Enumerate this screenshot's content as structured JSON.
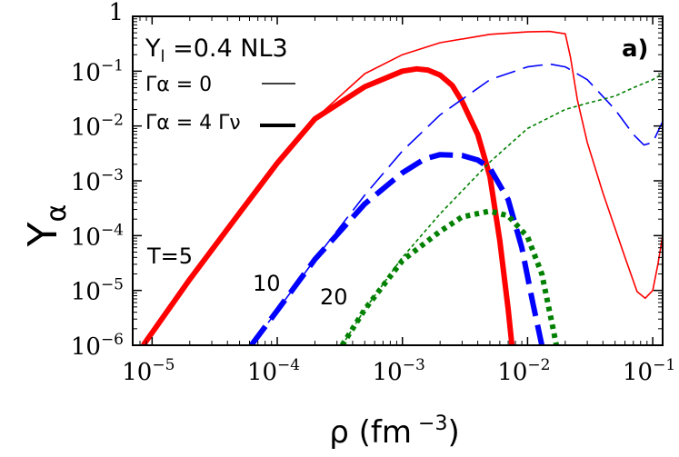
{
  "chart_data": {
    "type": "line",
    "panel_label": "a)",
    "xlabel_main": "ρ (fm",
    "xlabel_exp": " −3",
    "xlabel_close": ")",
    "ylabel_main": "Y",
    "ylabel_sub": "α",
    "xscale": "log",
    "yscale": "log",
    "xlim": [
      7e-06,
      0.12
    ],
    "ylim": [
      1e-06,
      1
    ],
    "grid": false,
    "x_ticks": [
      {
        "value": 1e-05,
        "base": "10",
        "exp": "−5"
      },
      {
        "value": 0.0001,
        "base": "10",
        "exp": "−4"
      },
      {
        "value": 0.001,
        "base": "10",
        "exp": "−3"
      },
      {
        "value": 0.01,
        "base": "10",
        "exp": "−2"
      },
      {
        "value": 0.1,
        "base": "10",
        "exp": "−1"
      }
    ],
    "y_ticks": [
      {
        "value": 1e-06,
        "base": "10",
        "exp": "−6"
      },
      {
        "value": 1e-05,
        "base": "10",
        "exp": "−5"
      },
      {
        "value": 0.0001,
        "base": "10",
        "exp": "−4"
      },
      {
        "value": 0.001,
        "base": "10",
        "exp": "−3"
      },
      {
        "value": 0.01,
        "base": "10",
        "exp": "−2"
      },
      {
        "value": 0.1,
        "base": "10",
        "exp": "−1"
      },
      {
        "value": 1,
        "base": "1",
        "exp": ""
      }
    ],
    "legend": {
      "line1_main": "Y",
      "line1_sub": "l",
      "line1_rest": " =0.4  NL3",
      "line2": "Γα = 0",
      "line3": "Γα = 4 Γν"
    },
    "curve_labels": {
      "t5": "T=5",
      "t10": "10",
      "t20": "20"
    },
    "colors": {
      "T5": "#ff0000",
      "T10": "#0000ff",
      "T20": "#008000"
    },
    "series": [
      {
        "group": "T5",
        "style": "solid",
        "width": "thin",
        "points": [
          [
            8.5e-06,
            1e-06
          ],
          [
            2e-05,
            1.6e-05
          ],
          [
            5e-05,
            0.00026
          ],
          [
            0.0001,
            0.0021
          ],
          [
            0.0002,
            0.0135
          ],
          [
            0.0005,
            0.09
          ],
          [
            0.001,
            0.2
          ],
          [
            0.002,
            0.33
          ],
          [
            0.005,
            0.47
          ],
          [
            0.01,
            0.52
          ],
          [
            0.015,
            0.53
          ],
          [
            0.02,
            0.48
          ],
          [
            0.022,
            0.18
          ],
          [
            0.025,
            0.03
          ],
          [
            0.03,
            0.005
          ],
          [
            0.04,
            0.0006
          ],
          [
            0.06,
            4e-05
          ],
          [
            0.075,
            9.5e-06
          ],
          [
            0.087,
            7.2e-06
          ],
          [
            0.1,
            1e-05
          ],
          [
            0.11,
            3e-05
          ],
          [
            0.12,
            0.0001
          ]
        ]
      },
      {
        "group": "T5",
        "style": "solid",
        "width": "thick",
        "points": [
          [
            8.5e-06,
            1e-06
          ],
          [
            2e-05,
            1.6e-05
          ],
          [
            5e-05,
            0.00026
          ],
          [
            0.0001,
            0.0021
          ],
          [
            0.0002,
            0.0135
          ],
          [
            0.0005,
            0.052
          ],
          [
            0.001,
            0.1
          ],
          [
            0.0013,
            0.11
          ],
          [
            0.0016,
            0.105
          ],
          [
            0.002,
            0.085
          ],
          [
            0.0025,
            0.055
          ],
          [
            0.003,
            0.028
          ],
          [
            0.004,
            0.007
          ],
          [
            0.005,
            0.0012
          ],
          [
            0.006,
            8e-05
          ],
          [
            0.007,
            4.5e-06
          ],
          [
            0.0075,
            1e-06
          ]
        ]
      },
      {
        "group": "T10",
        "style": "dashed",
        "width": "thin",
        "points": [
          [
            6.2e-05,
            1e-06
          ],
          [
            0.0001,
            4.3e-06
          ],
          [
            0.0002,
            3.7e-05
          ],
          [
            0.0005,
            0.00055
          ],
          [
            0.001,
            0.0035
          ],
          [
            0.002,
            0.016
          ],
          [
            0.005,
            0.07
          ],
          [
            0.01,
            0.12
          ],
          [
            0.015,
            0.135
          ],
          [
            0.02,
            0.12
          ],
          [
            0.03,
            0.07
          ],
          [
            0.05,
            0.02
          ],
          [
            0.07,
            0.007
          ],
          [
            0.085,
            0.0045
          ],
          [
            0.1,
            0.005
          ],
          [
            0.12,
            0.012
          ]
        ]
      },
      {
        "group": "T10",
        "style": "dashed",
        "width": "thick",
        "points": [
          [
            6.2e-05,
            1e-06
          ],
          [
            0.0001,
            4.3e-06
          ],
          [
            0.0002,
            3.7e-05
          ],
          [
            0.0005,
            0.00038
          ],
          [
            0.001,
            0.0014
          ],
          [
            0.0015,
            0.0025
          ],
          [
            0.002,
            0.003
          ],
          [
            0.003,
            0.0029
          ],
          [
            0.004,
            0.0024
          ],
          [
            0.005,
            0.0017
          ],
          [
            0.007,
            0.00045
          ],
          [
            0.009,
            6e-05
          ],
          [
            0.011,
            6e-06
          ],
          [
            0.013,
            1e-06
          ]
        ]
      },
      {
        "group": "T20",
        "style": "dotted",
        "width": "thin",
        "points": [
          [
            0.00033,
            1e-06
          ],
          [
            0.0005,
            4.5e-06
          ],
          [
            0.001,
            4e-05
          ],
          [
            0.002,
            0.00025
          ],
          [
            0.005,
            0.0022
          ],
          [
            0.01,
            0.009
          ],
          [
            0.02,
            0.02
          ],
          [
            0.03,
            0.026
          ],
          [
            0.05,
            0.035
          ],
          [
            0.07,
            0.05
          ],
          [
            0.1,
            0.07
          ],
          [
            0.12,
            0.09
          ]
        ]
      },
      {
        "group": "T20",
        "style": "dotted",
        "width": "thick",
        "points": [
          [
            0.00033,
            1e-06
          ],
          [
            0.0005,
            4.5e-06
          ],
          [
            0.001,
            3.5e-05
          ],
          [
            0.002,
            0.00012
          ],
          [
            0.003,
            0.00022
          ],
          [
            0.005,
            0.00028
          ],
          [
            0.007,
            0.00023
          ],
          [
            0.01,
            9.5e-05
          ],
          [
            0.013,
            2e-05
          ],
          [
            0.016,
            2e-06
          ],
          [
            0.017,
            1e-06
          ]
        ]
      }
    ]
  }
}
